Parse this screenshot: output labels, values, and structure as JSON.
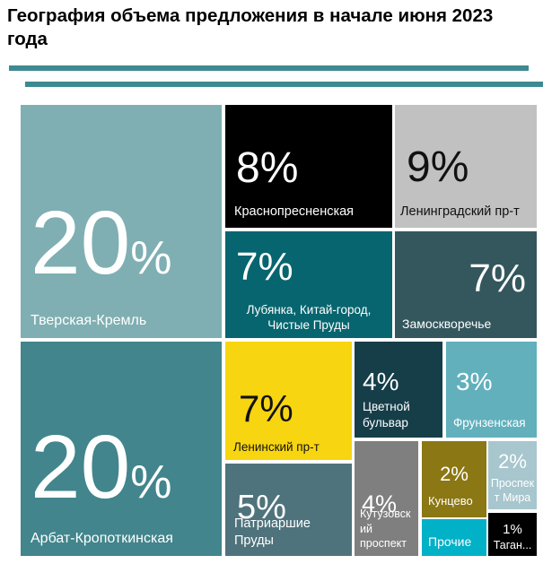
{
  "header": {
    "title": "География объема предложения в начале июня 2023 года"
  },
  "chart_data": {
    "type": "treemap",
    "title": "География объема предложения в начале июня 2023 года",
    "value_format": "percent",
    "legend": "none",
    "tiles": [
      {
        "label": "Тверская-Кремль",
        "value": 20,
        "num": "20",
        "sign": "%",
        "color": "#7FAFB2"
      },
      {
        "label": "Арбат-Кропоткинская",
        "value": 20,
        "num": "20",
        "sign": "%",
        "color": "#42858C"
      },
      {
        "label": "Краснопресненская",
        "value": 8,
        "pct": "8%",
        "color": "#000000"
      },
      {
        "label": "Ленинградский пр-т",
        "value": 9,
        "pct": "9%",
        "color": "#C1C1C1"
      },
      {
        "label": "Лубянка, Китай-город, Чистые Пруды",
        "value": 7,
        "pct": "7%",
        "color": "#07656F"
      },
      {
        "label": "Замоскворечье",
        "value": 7,
        "pct": "7%",
        "color": "#34575E"
      },
      {
        "label": "Ленинский пр-т",
        "value": 7,
        "pct": "7%",
        "color": "#F7D510"
      },
      {
        "label": "Патриаршие Пруды",
        "value": 5,
        "pct": "5%",
        "color": "#4F737C"
      },
      {
        "label": "Цветной бульвар",
        "value": 4,
        "pct": "4%",
        "color": "#153E49"
      },
      {
        "label": "Фрунзенская",
        "value": 3,
        "pct": "3%",
        "color": "#61B0BC"
      },
      {
        "label": "Кутузовский проспект",
        "value": 4,
        "pct": "4%",
        "color": "#7F7F7F"
      },
      {
        "label": "Кунцево",
        "value": 2,
        "pct": "2%",
        "color": "#8B7713"
      },
      {
        "label": "Проспект Мира",
        "value": 2,
        "pct": "2%",
        "color": "#A7C6CE"
      },
      {
        "label": "Прочие",
        "value": null,
        "pct": "",
        "color": "#00B1C7"
      },
      {
        "label": "Таган...",
        "value": 1,
        "pct": "1%",
        "color": "#000000"
      }
    ]
  }
}
